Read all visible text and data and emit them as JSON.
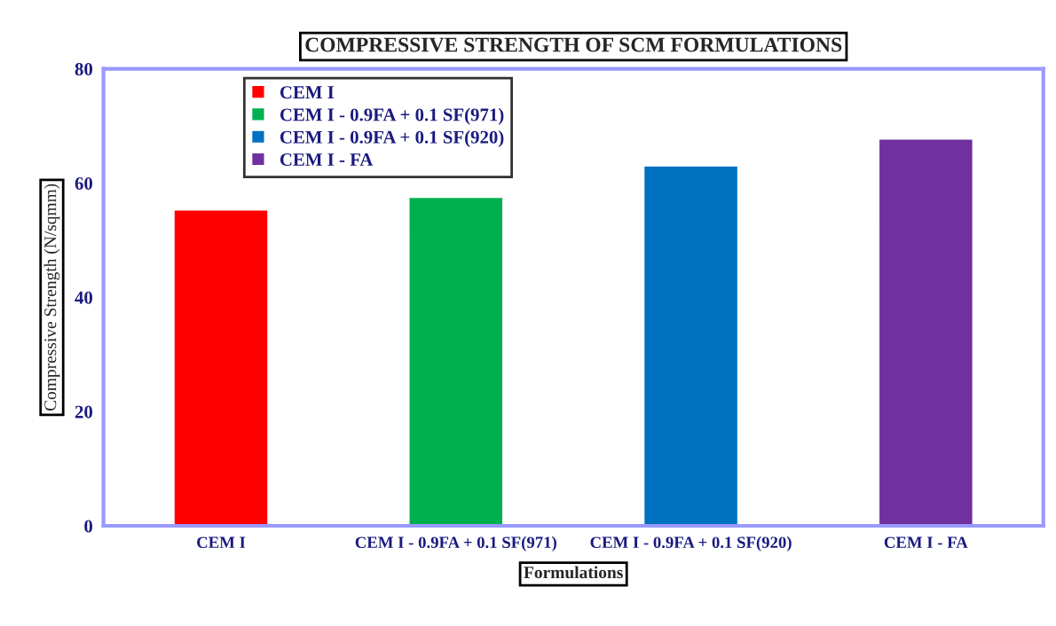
{
  "chart_data": {
    "type": "bar",
    "title": "COMPRESSIVE STRENGTH OF SCM FORMULATIONS",
    "xlabel": "Formulations",
    "ylabel": "Compressive Strength (N/sqmm)",
    "categories": [
      "CEM I",
      "CEM I - 0.9FA + 0.1 SF(971)",
      "CEM I - 0.9FA + 0.1 SF(920)",
      "CEM I - FA"
    ],
    "stacked": true,
    "series": [
      {
        "name": "CEM I",
        "color": "#ff0000",
        "values": [
          55.3,
          null,
          null,
          null
        ]
      },
      {
        "name": "CEM I - 0.9FA + 0.1 SF(971)",
        "color": "#00b050",
        "values": [
          null,
          57.5,
          null,
          null
        ]
      },
      {
        "name": "CEM I - 0.9FA + 0.1 SF(920)",
        "color": "#0070c0",
        "values": [
          null,
          null,
          63.0,
          null
        ]
      },
      {
        "name": "CEM I - FA",
        "color": "#7030a0",
        "values": [
          null,
          null,
          null,
          67.7
        ]
      }
    ],
    "ylim": [
      0,
      80
    ],
    "yticks": [
      0,
      20,
      40,
      60,
      80
    ],
    "grid": false,
    "legend": "top left"
  }
}
